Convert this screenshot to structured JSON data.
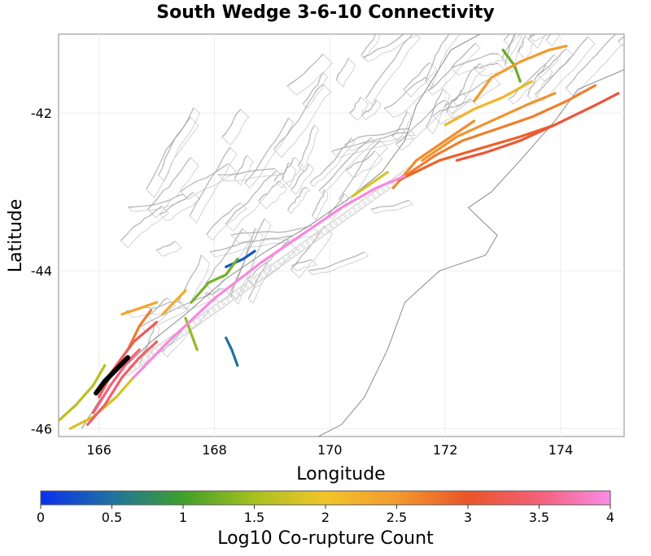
{
  "chart_data": {
    "type": "map",
    "title": "South Wedge 3-6-10 Connectivity",
    "xlabel": "Longitude",
    "ylabel": "Latitude",
    "xlim": [
      165.3,
      175.1
    ],
    "ylim": [
      -46.1,
      -41.0
    ],
    "x_ticks": [
      166,
      168,
      170,
      172,
      174
    ],
    "x_tick_labels": [
      "166",
      "168",
      "170",
      "172",
      "174"
    ],
    "y_ticks": [
      -42,
      -44,
      -46
    ],
    "y_tick_labels": [
      "-42",
      "-44",
      "-46"
    ],
    "colorbar": {
      "label": "Log10 Co-rupture Count",
      "range": [
        0,
        4
      ],
      "ticks": [
        0,
        0.5,
        1,
        1.5,
        2,
        2.5,
        3,
        3.5,
        4
      ],
      "tick_labels": [
        "0",
        "0.5",
        "1",
        "1.5",
        "2",
        "2.5",
        "3",
        "3.5",
        "4"
      ],
      "stops": [
        {
          "value": 0,
          "color": "#0a2ff0"
        },
        {
          "value": 0.5,
          "color": "#1f72a0"
        },
        {
          "value": 1,
          "color": "#3fa02a"
        },
        {
          "value": 1.5,
          "color": "#a8c020"
        },
        {
          "value": 2,
          "color": "#f3c52a"
        },
        {
          "value": 2.5,
          "color": "#f39a2e"
        },
        {
          "value": 3,
          "color": "#ea5428"
        },
        {
          "value": 3.5,
          "color": "#f4607a"
        },
        {
          "value": 4,
          "color": "#fa8ce8"
        }
      ]
    },
    "source_section_color": "#000000",
    "corupture_traces": [
      {
        "id": "alpine-central",
        "value": 3.95,
        "points": [
          [
            166.6,
            -45.35
          ],
          [
            167.2,
            -44.9
          ],
          [
            168.0,
            -44.35
          ],
          [
            168.8,
            -43.9
          ],
          [
            169.5,
            -43.55
          ],
          [
            170.2,
            -43.2
          ],
          [
            170.8,
            -42.95
          ],
          [
            171.3,
            -42.8
          ]
        ]
      },
      {
        "id": "alpine-south-a",
        "value": 3.4,
        "points": [
          [
            165.8,
            -45.95
          ],
          [
            166.1,
            -45.7
          ],
          [
            166.4,
            -45.35
          ],
          [
            166.7,
            -45.1
          ],
          [
            167.0,
            -44.9
          ]
        ]
      },
      {
        "id": "alpine-south-b",
        "value": 3.3,
        "points": [
          [
            166.0,
            -45.6
          ],
          [
            166.3,
            -45.2
          ],
          [
            166.6,
            -44.9
          ],
          [
            167.0,
            -44.65
          ]
        ]
      },
      {
        "id": "alpine-south-c",
        "value": 3.5,
        "points": [
          [
            165.9,
            -45.8
          ],
          [
            166.2,
            -45.45
          ],
          [
            166.5,
            -45.15
          ],
          [
            166.7,
            -45.0
          ]
        ]
      },
      {
        "id": "offshore-west",
        "value": 2.7,
        "points": [
          [
            166.2,
            -45.3
          ],
          [
            166.5,
            -45.0
          ],
          [
            166.7,
            -44.7
          ],
          [
            166.9,
            -44.5
          ]
        ]
      },
      {
        "id": "offshore-west-b",
        "value": 2.4,
        "points": [
          [
            166.4,
            -44.55
          ],
          [
            166.8,
            -44.45
          ],
          [
            167.0,
            -44.4
          ]
        ]
      },
      {
        "id": "offshore-west-c",
        "value": 2.3,
        "points": [
          [
            167.1,
            -44.55
          ],
          [
            167.3,
            -44.4
          ],
          [
            167.5,
            -44.25
          ]
        ]
      },
      {
        "id": "fiordland-sw",
        "value": 1.6,
        "points": [
          [
            165.3,
            -45.9
          ],
          [
            165.6,
            -45.7
          ],
          [
            165.9,
            -45.45
          ],
          [
            166.1,
            -45.2
          ]
        ]
      },
      {
        "id": "fiordland-sw-b",
        "value": 1.8,
        "points": [
          [
            165.5,
            -46.0
          ],
          [
            165.9,
            -45.85
          ],
          [
            166.3,
            -45.6
          ],
          [
            166.6,
            -45.35
          ]
        ]
      },
      {
        "id": "offshore-mid",
        "value": 1.25,
        "points": [
          [
            167.6,
            -44.4
          ],
          [
            167.9,
            -44.15
          ],
          [
            168.2,
            -44.05
          ],
          [
            168.4,
            -43.85
          ]
        ]
      },
      {
        "id": "offshore-north",
        "value": 0.3,
        "points": [
          [
            168.2,
            -43.95
          ],
          [
            168.5,
            -43.85
          ],
          [
            168.7,
            -43.75
          ]
        ]
      },
      {
        "id": "inland-a",
        "value": 1.4,
        "points": [
          [
            167.5,
            -44.6
          ],
          [
            167.6,
            -44.8
          ],
          [
            167.7,
            -45.0
          ]
        ]
      },
      {
        "id": "inland-b",
        "value": 0.5,
        "points": [
          [
            168.2,
            -44.85
          ],
          [
            168.3,
            -45.0
          ],
          [
            168.4,
            -45.2
          ]
        ]
      },
      {
        "id": "hope-a",
        "value": 2.7,
        "points": [
          [
            171.3,
            -42.8
          ],
          [
            171.8,
            -42.55
          ],
          [
            172.3,
            -42.35
          ],
          [
            172.9,
            -42.2
          ],
          [
            173.5,
            -42.05
          ],
          [
            174.1,
            -41.85
          ],
          [
            174.6,
            -41.65
          ]
        ]
      },
      {
        "id": "hope-b",
        "value": 2.9,
        "points": [
          [
            171.2,
            -42.85
          ],
          [
            171.9,
            -42.6
          ],
          [
            172.6,
            -42.45
          ],
          [
            173.3,
            -42.3
          ],
          [
            173.9,
            -42.15
          ]
        ]
      },
      {
        "id": "clarence",
        "value": 2.55,
        "points": [
          [
            171.6,
            -42.6
          ],
          [
            172.2,
            -42.3
          ],
          [
            172.8,
            -42.1
          ],
          [
            173.4,
            -41.9
          ],
          [
            173.9,
            -41.75
          ]
        ]
      },
      {
        "id": "awatere",
        "value": 2.2,
        "points": [
          [
            172.0,
            -42.15
          ],
          [
            172.5,
            -41.95
          ],
          [
            173.0,
            -41.8
          ],
          [
            173.5,
            -41.6
          ]
        ]
      },
      {
        "id": "wairau",
        "value": 2.5,
        "points": [
          [
            172.5,
            -41.85
          ],
          [
            172.8,
            -41.55
          ],
          [
            173.3,
            -41.35
          ],
          [
            173.8,
            -41.2
          ],
          [
            174.1,
            -41.15
          ]
        ]
      },
      {
        "id": "alpine-north",
        "value": 2.6,
        "points": [
          [
            171.1,
            -42.95
          ],
          [
            171.5,
            -42.6
          ],
          [
            172.0,
            -42.35
          ],
          [
            172.5,
            -42.1
          ]
        ]
      },
      {
        "id": "waimea",
        "value": 1.2,
        "points": [
          [
            173.0,
            -41.2
          ],
          [
            173.2,
            -41.4
          ],
          [
            173.3,
            -41.6
          ]
        ]
      },
      {
        "id": "hikurangi-link",
        "value": 3.1,
        "points": [
          [
            172.2,
            -42.6
          ],
          [
            172.7,
            -42.5
          ],
          [
            173.3,
            -42.35
          ],
          [
            173.9,
            -42.15
          ],
          [
            174.6,
            -41.9
          ],
          [
            175.0,
            -41.75
          ]
        ]
      },
      {
        "id": "puysegur-s",
        "value": 1.8,
        "points": [
          [
            170.4,
            -43.05
          ],
          [
            170.7,
            -42.9
          ],
          [
            171.0,
            -42.75
          ]
        ]
      }
    ],
    "source_section": [
      [
        165.95,
        -45.55
      ],
      [
        166.1,
        -45.4
      ],
      [
        166.3,
        -45.25
      ],
      [
        166.5,
        -45.1
      ]
    ]
  }
}
